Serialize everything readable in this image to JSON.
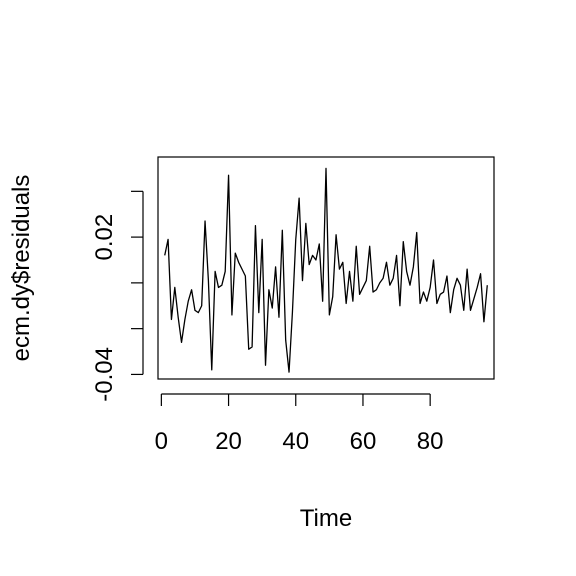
{
  "chart_data": {
    "type": "line",
    "title": "",
    "xlabel": "Time",
    "ylabel": "ecm.dy$residuals",
    "xlim": [
      -1,
      99
    ],
    "ylim": [
      -0.042,
      0.055
    ],
    "x_ticks": [
      0,
      20,
      40,
      60,
      80
    ],
    "x_tick_labels": [
      "0",
      "20",
      "40",
      "60",
      "80"
    ],
    "y_ticks": [
      -0.04,
      -0.02,
      0.0,
      0.02,
      0.04
    ],
    "y_tick_labels": [
      "-0.04",
      "",
      "",
      "0.02",
      ""
    ],
    "grid": false,
    "legend": "none",
    "series": [
      {
        "color": "#000000",
        "x": [
          1,
          2,
          3,
          4,
          5,
          6,
          7,
          8,
          9,
          10,
          11,
          12,
          13,
          14,
          15,
          16,
          17,
          18,
          19,
          20,
          21,
          22,
          23,
          24,
          25,
          26,
          27,
          28,
          29,
          30,
          31,
          32,
          33,
          34,
          35,
          36,
          37,
          38,
          39,
          40,
          41,
          42,
          43,
          44,
          45,
          46,
          47,
          48,
          49,
          50,
          51,
          52,
          53,
          54,
          55,
          56,
          57,
          58,
          59,
          60,
          61,
          62,
          63,
          64,
          65,
          66,
          67,
          68,
          69,
          70,
          71,
          72,
          73,
          74,
          75,
          76,
          77,
          78,
          79,
          80,
          81,
          82,
          83,
          84,
          85,
          86,
          87,
          88,
          89,
          90,
          91,
          92,
          93,
          94,
          95,
          96,
          97
        ],
        "values": [
          0.012,
          0.019,
          -0.016,
          -0.002,
          -0.015,
          -0.026,
          -0.016,
          -0.008,
          -0.003,
          -0.012,
          -0.013,
          -0.01,
          0.027,
          0.001,
          -0.038,
          0.005,
          -0.002,
          -0.001,
          0.005,
          0.047,
          -0.014,
          0.013,
          0.009,
          0.006,
          0.003,
          -0.029,
          -0.028,
          0.025,
          -0.013,
          0.019,
          -0.036,
          -0.003,
          -0.011,
          0.007,
          -0.015,
          0.023,
          -0.025,
          -0.039,
          -0.013,
          0.019,
          0.037,
          0.001,
          0.026,
          0.008,
          0.012,
          0.01,
          0.017,
          -0.008,
          0.05,
          -0.014,
          -0.006,
          0.021,
          0.006,
          0.009,
          -0.009,
          0.005,
          -0.008,
          0.016,
          -0.005,
          -0.002,
          0.001,
          0.016,
          -0.004,
          -0.003,
          0.0,
          0.002,
          0.009,
          -0.001,
          0.002,
          0.012,
          -0.01,
          0.018,
          0.005,
          -0.001,
          0.007,
          0.022,
          -0.009,
          -0.004,
          -0.008,
          -0.002,
          0.01,
          -0.009,
          -0.005,
          -0.004,
          0.003,
          -0.013,
          -0.003,
          0.002,
          -0.001,
          -0.012,
          0.006,
          -0.012,
          -0.007,
          -0.002,
          0.004,
          -0.017,
          -0.001
        ]
      }
    ]
  }
}
